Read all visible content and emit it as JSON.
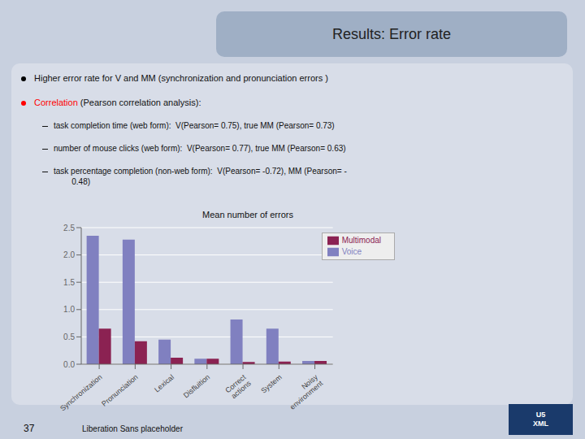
{
  "chart_data": {
    "type": "bar",
    "title": "Mean number of errors",
    "categories": [
      "Synchronization",
      "Pronunciation",
      "Lexical",
      "Disfluition",
      "Correct\nactions",
      "System",
      "Noisy\nenvironment"
    ],
    "series": [
      {
        "name": "Voice",
        "color": "#8080c0",
        "values": [
          2.35,
          2.28,
          0.45,
          0.1,
          0.82,
          0.65,
          0.06
        ]
      },
      {
        "name": "Multimodal",
        "color": "#8b2252",
        "values": [
          0.65,
          0.42,
          0.12,
          0.1,
          0.04,
          0.05,
          0.06
        ]
      }
    ],
    "ylim": [
      0,
      2.5
    ],
    "yticks": [
      {
        "value": 0,
        "label": "0.0"
      },
      0.5,
      {
        "value": 1,
        "label": "1.0"
      },
      1.5,
      {
        "value": 2,
        "label": "2.0"
      },
      2.5
    ],
    "grid": true,
    "legend": "upper right",
    "annotations": [
      {
        "text": "Results: Error rate"
      },
      {
        "text": "Higher error rate for V and MM (synchronization and pronunciation errors )"
      },
      {
        "text": "Correlation",
        "color": "red"
      },
      {
        "text": " (Pearson correlation analysis):"
      },
      {
        "text": "task completion time (web form):  V(Pearson= 0.75), true MM (Pearson= 0.73)"
      },
      {
        "text": "number of mouse clicks (web form):  V(Pearson= 0.77), true MM (Pearson= 0.63)"
      },
      {
        "text": "task percentage completion (non-web form):  V(Pearson= -0.72), MM (Pearson= -\n        0.48)"
      },
      {
        "text": "37"
      },
      {
        "text": "Liberation Sans placeholder"
      },
      {
        "text": "U5\nXML"
      }
    ]
  }
}
